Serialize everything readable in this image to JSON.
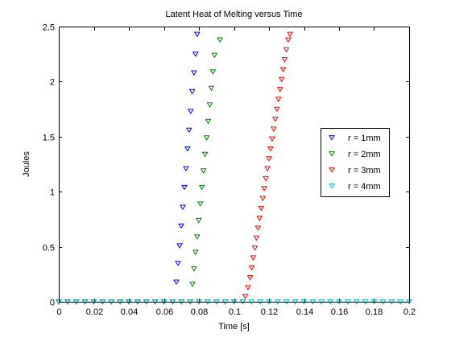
{
  "chart_data": {
    "type": "scatter",
    "title": "Latent Heat of Melting versus Time",
    "xlabel": "Time [s]",
    "ylabel": "Joules",
    "xlim": [
      0,
      0.2
    ],
    "ylim": [
      0,
      2.5
    ],
    "xticks": [
      0,
      0.02,
      0.04,
      0.06,
      0.08,
      0.1,
      0.12,
      0.14,
      0.16,
      0.18,
      0.2
    ],
    "yticks": [
      0,
      0.5,
      1,
      1.5,
      2,
      2.5
    ],
    "xtick_labels": [
      "0",
      "0.02",
      "0.04",
      "0.06",
      "0.08",
      "0.1",
      "0.12",
      "0.14",
      "0.16",
      "0.18",
      "0.2"
    ],
    "ytick_labels": [
      "0",
      "0.5",
      "1",
      "1.5",
      "2",
      "2.5"
    ],
    "grid": false,
    "legend_position": "right",
    "marker": "downward-triangle",
    "series": [
      {
        "name": "r = 1mm",
        "color": "#0000ff",
        "points": [
          [
            0,
            0
          ],
          [
            0.005,
            0
          ],
          [
            0.01,
            0
          ],
          [
            0.015,
            0
          ],
          [
            0.02,
            0
          ],
          [
            0.025,
            0
          ],
          [
            0.03,
            0
          ],
          [
            0.035,
            0
          ],
          [
            0.04,
            0
          ],
          [
            0.045,
            0
          ],
          [
            0.05,
            0
          ],
          [
            0.055,
            0
          ],
          [
            0.06,
            0
          ],
          [
            0.065,
            0
          ],
          [
            0.0671,
            0.18
          ],
          [
            0.0681,
            0.35
          ],
          [
            0.069,
            0.51
          ],
          [
            0.0699,
            0.69
          ],
          [
            0.0708,
            0.86
          ],
          [
            0.0717,
            1.04
          ],
          [
            0.0726,
            1.21
          ],
          [
            0.0735,
            1.39
          ],
          [
            0.0744,
            1.56
          ],
          [
            0.0753,
            1.73
          ],
          [
            0.0762,
            1.91
          ],
          [
            0.0772,
            2.08
          ],
          [
            0.0781,
            2.25
          ],
          [
            0.079,
            2.43
          ]
        ]
      },
      {
        "name": "r = 2mm",
        "color": "#008000",
        "points": [
          [
            0,
            0
          ],
          [
            0.005,
            0
          ],
          [
            0.01,
            0
          ],
          [
            0.015,
            0
          ],
          [
            0.02,
            0
          ],
          [
            0.025,
            0
          ],
          [
            0.03,
            0
          ],
          [
            0.035,
            0
          ],
          [
            0.04,
            0
          ],
          [
            0.045,
            0
          ],
          [
            0.05,
            0
          ],
          [
            0.055,
            0
          ],
          [
            0.06,
            0
          ],
          [
            0.065,
            0
          ],
          [
            0.07,
            0
          ],
          [
            0.075,
            0
          ],
          [
            0.0763,
            0.16
          ],
          [
            0.0772,
            0.3
          ],
          [
            0.0781,
            0.45
          ],
          [
            0.079,
            0.59
          ],
          [
            0.0799,
            0.74
          ],
          [
            0.0808,
            0.89
          ],
          [
            0.0817,
            1.04
          ],
          [
            0.0826,
            1.19
          ],
          [
            0.0835,
            1.34
          ],
          [
            0.0844,
            1.49
          ],
          [
            0.0853,
            1.64
          ],
          [
            0.0862,
            1.79
          ],
          [
            0.0871,
            1.94
          ],
          [
            0.088,
            2.09
          ],
          [
            0.0889,
            2.24
          ],
          [
            0.092,
            2.38
          ]
        ]
      },
      {
        "name": "r = 3mm",
        "color": "#ff0000",
        "points": [
          [
            0,
            0
          ],
          [
            0.005,
            0
          ],
          [
            0.01,
            0
          ],
          [
            0.015,
            0
          ],
          [
            0.02,
            0
          ],
          [
            0.025,
            0
          ],
          [
            0.03,
            0
          ],
          [
            0.035,
            0
          ],
          [
            0.04,
            0
          ],
          [
            0.045,
            0
          ],
          [
            0.05,
            0
          ],
          [
            0.055,
            0
          ],
          [
            0.06,
            0
          ],
          [
            0.065,
            0
          ],
          [
            0.07,
            0
          ],
          [
            0.075,
            0
          ],
          [
            0.08,
            0
          ],
          [
            0.085,
            0
          ],
          [
            0.09,
            0
          ],
          [
            0.095,
            0
          ],
          [
            0.1,
            0
          ],
          [
            0.105,
            0
          ],
          [
            0.1065,
            0.05
          ],
          [
            0.108,
            0.13
          ],
          [
            0.1092,
            0.22
          ],
          [
            0.1101,
            0.31
          ],
          [
            0.111,
            0.4
          ],
          [
            0.1119,
            0.49
          ],
          [
            0.1128,
            0.58
          ],
          [
            0.1137,
            0.67
          ],
          [
            0.1146,
            0.76
          ],
          [
            0.1155,
            0.85
          ],
          [
            0.1164,
            0.94
          ],
          [
            0.1173,
            1.03
          ],
          [
            0.1182,
            1.12
          ],
          [
            0.1191,
            1.21
          ],
          [
            0.12,
            1.3
          ],
          [
            0.1209,
            1.39
          ],
          [
            0.1218,
            1.48
          ],
          [
            0.1227,
            1.57
          ],
          [
            0.1236,
            1.66
          ],
          [
            0.1245,
            1.75
          ],
          [
            0.1254,
            1.84
          ],
          [
            0.1263,
            1.93
          ],
          [
            0.1272,
            2.02
          ],
          [
            0.1281,
            2.11
          ],
          [
            0.129,
            2.2
          ],
          [
            0.1299,
            2.29
          ],
          [
            0.131,
            2.38
          ],
          [
            0.132,
            2.43
          ]
        ]
      },
      {
        "name": "r = 4mm",
        "color": "#00bfbf",
        "points": [
          [
            0,
            0
          ],
          [
            0.005,
            0
          ],
          [
            0.01,
            0
          ],
          [
            0.015,
            0
          ],
          [
            0.02,
            0
          ],
          [
            0.025,
            0
          ],
          [
            0.03,
            0
          ],
          [
            0.035,
            0
          ],
          [
            0.04,
            0
          ],
          [
            0.045,
            0
          ],
          [
            0.05,
            0
          ],
          [
            0.055,
            0
          ],
          [
            0.06,
            0
          ],
          [
            0.065,
            0
          ],
          [
            0.07,
            0
          ],
          [
            0.075,
            0
          ],
          [
            0.08,
            0
          ],
          [
            0.085,
            0
          ],
          [
            0.09,
            0
          ],
          [
            0.095,
            0
          ],
          [
            0.1,
            0
          ],
          [
            0.105,
            0
          ],
          [
            0.11,
            0
          ],
          [
            0.115,
            0
          ],
          [
            0.12,
            0
          ],
          [
            0.125,
            0
          ],
          [
            0.13,
            0
          ],
          [
            0.135,
            0
          ],
          [
            0.14,
            0
          ],
          [
            0.145,
            0
          ],
          [
            0.15,
            0
          ],
          [
            0.155,
            0
          ],
          [
            0.16,
            0
          ],
          [
            0.165,
            0
          ],
          [
            0.17,
            0
          ],
          [
            0.175,
            0
          ],
          [
            0.18,
            0
          ],
          [
            0.185,
            0
          ],
          [
            0.19,
            0
          ],
          [
            0.195,
            0
          ],
          [
            0.2,
            0
          ]
        ]
      }
    ]
  }
}
